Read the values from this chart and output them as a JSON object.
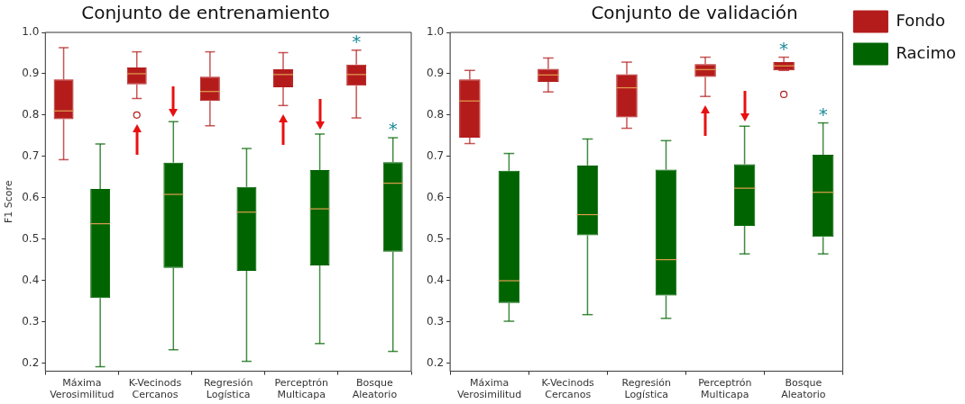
{
  "chart_data": [
    {
      "type": "box",
      "title": "Conjunto de entrenamiento",
      "ylabel": "F1 Score",
      "categories": [
        "Máxima Verosimilitud",
        "K-Vecinods Cercanos",
        "Regresión Logística",
        "Perceptrón Multicapa",
        "Bosque Aleatorio"
      ],
      "ylim": [
        0.18,
        1.0
      ],
      "yticks": [
        0.2,
        0.3,
        0.4,
        0.5,
        0.6,
        0.7,
        0.8,
        0.9,
        {
          "value": 1.0,
          "label": "1.0"
        }
      ],
      "series": [
        {
          "color": "#b41c1c",
          "boxes": [
            {
              "low": 0.692,
              "q1": 0.79,
              "median": 0.81,
              "q3": 0.886,
              "high": 0.963
            },
            {
              "low": 0.84,
              "q1": 0.874,
              "median": 0.9,
              "q3": 0.915,
              "high": 0.953,
              "outliers": [
                0.8
              ]
            },
            {
              "low": 0.774,
              "q1": 0.834,
              "median": 0.857,
              "q3": 0.893,
              "high": 0.953
            },
            {
              "low": 0.823,
              "q1": 0.867,
              "median": 0.898,
              "q3": 0.911,
              "high": 0.951
            },
            {
              "low": 0.793,
              "q1": 0.871,
              "median": 0.898,
              "q3": 0.922,
              "high": 0.957
            }
          ]
        },
        {
          "color": "#006400",
          "boxes": [
            {
              "low": 0.191,
              "q1": 0.357,
              "median": 0.537,
              "q3": 0.621,
              "high": 0.73
            },
            {
              "low": 0.232,
              "q1": 0.43,
              "median": 0.608,
              "q3": 0.685,
              "high": 0.784
            },
            {
              "low": 0.204,
              "q1": 0.423,
              "median": 0.565,
              "q3": 0.626,
              "high": 0.719
            },
            {
              "low": 0.247,
              "q1": 0.436,
              "median": 0.573,
              "q3": 0.667,
              "high": 0.754
            },
            {
              "low": 0.228,
              "q1": 0.469,
              "median": 0.635,
              "q3": 0.686,
              "high": 0.745
            }
          ]
        }
      ],
      "annotations": [
        "*",
        "*"
      ]
    },
    {
      "type": "box",
      "title": "Conjunto de validación",
      "categories": [
        "Máxima Verosimilitud",
        "K-Vecinods Cercanos",
        "Regresión Logística",
        "Perceptrón Multicapa",
        "Bosque Aleatorio"
      ],
      "ylim": [
        0.18,
        1.0
      ],
      "yticks": [
        0.2,
        0.3,
        0.4,
        0.5,
        0.6,
        0.7,
        0.8,
        0.9,
        {
          "value": 1.0,
          "label": "1.0"
        }
      ],
      "legend": "top right",
      "series": [
        {
          "name": "Fondo",
          "color": "#b41c1c",
          "boxes": [
            {
              "low": 0.731,
              "q1": 0.745,
              "median": 0.834,
              "q3": 0.886,
              "high": 0.908
            },
            {
              "low": 0.856,
              "q1": 0.88,
              "median": 0.897,
              "q3": 0.912,
              "high": 0.938
            },
            {
              "low": 0.768,
              "q1": 0.794,
              "median": 0.866,
              "q3": 0.899,
              "high": 0.928
            },
            {
              "low": 0.845,
              "q1": 0.892,
              "median": 0.91,
              "q3": 0.923,
              "high": 0.94
            },
            {
              "low": 0.908,
              "q1": 0.908,
              "median": 0.919,
              "q3": 0.928,
              "high": 0.94,
              "outliers": [
                0.85
              ]
            }
          ]
        },
        {
          "name": "Racimo",
          "color": "#006400",
          "boxes": [
            {
              "low": 0.301,
              "q1": 0.345,
              "median": 0.399,
              "q3": 0.665,
              "high": 0.707
            },
            {
              "low": 0.317,
              "q1": 0.509,
              "median": 0.559,
              "q3": 0.678,
              "high": 0.742
            },
            {
              "low": 0.308,
              "q1": 0.363,
              "median": 0.45,
              "q3": 0.668,
              "high": 0.738
            },
            {
              "low": 0.464,
              "q1": 0.532,
              "median": 0.623,
              "q3": 0.681,
              "high": 0.773
            },
            {
              "low": 0.464,
              "q1": 0.505,
              "median": 0.613,
              "q3": 0.704,
              "high": 0.781
            }
          ]
        }
      ],
      "annotations": [
        "*",
        "*"
      ]
    }
  ]
}
